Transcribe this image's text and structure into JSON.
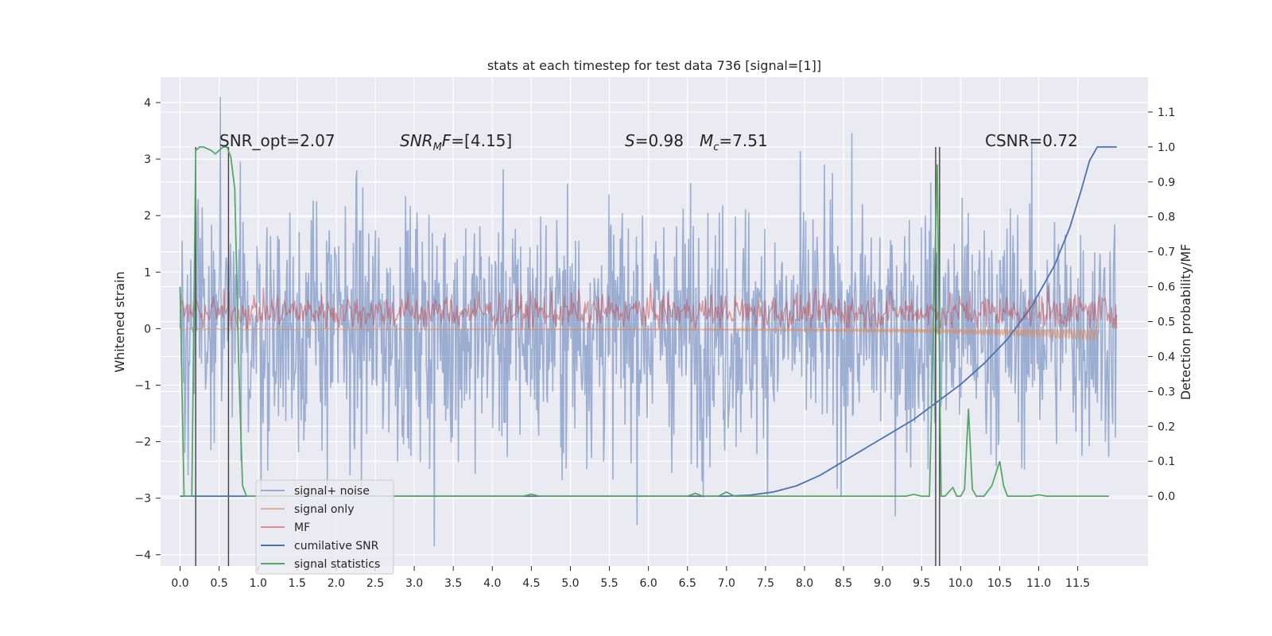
{
  "chart_data": {
    "type": "line",
    "title": "stats at each timestep for test data 736 [signal=[1]]",
    "xlabel": "",
    "ylabel_left": "Whitened strain",
    "ylabel_right": "Detection probability/MF",
    "xlim": [
      -0.25,
      12.4
    ],
    "ylim_left": [
      -4.2,
      4.45
    ],
    "ylim_right": [
      -0.2,
      1.2
    ],
    "x_ticks": [
      0.0,
      0.5,
      1.0,
      1.5,
      2.0,
      2.5,
      3.0,
      3.5,
      4.0,
      4.5,
      5.0,
      5.5,
      6.0,
      6.5,
      7.0,
      7.5,
      8.0,
      8.5,
      9.0,
      9.5,
      10.0,
      10.5,
      11.0,
      11.5
    ],
    "x_tick_labels": [
      "0.0",
      "0.5",
      "1.0",
      "1.5",
      "2.0",
      "2.5",
      "3.0",
      "3.5",
      "4.0",
      "4.5",
      "5.0",
      "5.5",
      "6.0",
      "6.5",
      "7.0",
      "7.5",
      "8.0",
      "8.5",
      "9.0",
      "9.5",
      "10.0",
      "10.5",
      "11.0",
      "11.5"
    ],
    "y_left_ticks": [
      -4,
      -3,
      -2,
      -1,
      0,
      1,
      2,
      3,
      4
    ],
    "y_left_tick_labels": [
      "−4",
      "−3",
      "−2",
      "−1",
      "0",
      "1",
      "2",
      "3",
      "4"
    ],
    "y_right_ticks": [
      0.0,
      0.1,
      0.2,
      0.3,
      0.4,
      0.5,
      0.6,
      0.7,
      0.8,
      0.9,
      1.0,
      1.1
    ],
    "y_right_tick_labels": [
      "0.0",
      "0.1",
      "0.2",
      "0.3",
      "0.4",
      "0.5",
      "0.6",
      "0.7",
      "0.8",
      "0.9",
      "1.0",
      "1.1"
    ],
    "grid": true,
    "legend_placement": "lower-left",
    "annotations": {
      "snr_opt": "SNR_opt=2.07",
      "snr_mf_base": "SNR",
      "snr_mf_sub": "M",
      "snr_mf_rest": "F=[4.15]",
      "s_base": "S",
      "s_rest": "=0.98",
      "mc_base": "M",
      "mc_sub": "c",
      "mc_rest": "=7.51",
      "csnr": "CSNR=0.72"
    },
    "series": [
      {
        "name": "signal+ noise",
        "axis": "left",
        "color": "#4c72b0",
        "style": "noise",
        "x_range": [
          0.0,
          12.0
        ],
        "amplitude_std": 1.1,
        "peak_max": 4.1,
        "peak_min": -3.85
      },
      {
        "name": "signal only",
        "axis": "left",
        "color": "#dd8452",
        "style": "chirp",
        "x_range": [
          0.0,
          11.75
        ],
        "end_min": -0.22
      },
      {
        "name": "MF",
        "axis": "left",
        "color": "#c44e52",
        "style": "mf",
        "x_range": [
          0.0,
          12.0
        ],
        "center": 0.3,
        "spread": 0.2
      },
      {
        "name": "cumilative SNR",
        "axis": "right",
        "color": "#4c72b0",
        "x": [
          0.0,
          7.0,
          7.3,
          7.6,
          7.9,
          8.2,
          8.5,
          8.8,
          9.1,
          9.4,
          9.7,
          10.0,
          10.3,
          10.6,
          10.9,
          11.2,
          11.4,
          11.55,
          11.65,
          11.75,
          12.0
        ],
        "y": [
          0.0,
          0.0,
          0.003,
          0.012,
          0.03,
          0.06,
          0.1,
          0.14,
          0.18,
          0.22,
          0.27,
          0.32,
          0.38,
          0.45,
          0.54,
          0.66,
          0.77,
          0.88,
          0.96,
          1.0,
          1.0
        ]
      },
      {
        "name": "signal statistics",
        "axis": "right",
        "color": "#55a868",
        "x": [
          0.0,
          0.05,
          0.1,
          0.15,
          0.2,
          0.25,
          0.3,
          0.4,
          0.45,
          0.5,
          0.55,
          0.6,
          0.65,
          0.7,
          0.75,
          0.8,
          0.85,
          0.9,
          1.0,
          4.4,
          4.5,
          4.6,
          6.5,
          6.6,
          6.7,
          6.9,
          7.0,
          7.1,
          7.2,
          9.3,
          9.4,
          9.5,
          9.6,
          9.7,
          9.75,
          9.8,
          9.9,
          9.95,
          10.0,
          10.05,
          10.1,
          10.15,
          10.2,
          10.3,
          10.4,
          10.5,
          10.55,
          10.6,
          10.7,
          10.8,
          10.9,
          11.0,
          11.1,
          11.9
        ],
        "y": [
          0.6,
          0.0,
          0.0,
          0.0,
          0.99,
          1.0,
          1.0,
          0.99,
          0.98,
          0.99,
          1.0,
          1.0,
          0.97,
          0.88,
          0.38,
          0.03,
          0.0,
          0.0,
          0.0,
          0.0,
          0.006,
          0.0,
          0.0,
          0.008,
          0.0,
          0.0,
          0.012,
          0.0,
          0.0,
          0.0,
          0.005,
          0.0,
          0.0,
          0.95,
          0.0,
          0.0,
          0.025,
          0.0,
          0.0,
          0.02,
          0.25,
          0.02,
          0.0,
          0.0,
          0.03,
          0.1,
          0.03,
          0.0,
          0.0,
          0.0,
          0.0,
          0.004,
          0.0,
          0.0
        ]
      }
    ],
    "vertical_markers": [
      {
        "x": 0.2,
        "y_range": [
          -0.2,
          1.0
        ],
        "color": "#404040"
      },
      {
        "x": 0.62,
        "y_range": [
          -0.2,
          1.0
        ],
        "color": "#404040"
      },
      {
        "x": 9.68,
        "y_range": [
          -0.2,
          1.0
        ],
        "color": "#404040"
      },
      {
        "x": 9.73,
        "y_range": [
          -0.2,
          1.0
        ],
        "color": "#404040"
      }
    ]
  }
}
